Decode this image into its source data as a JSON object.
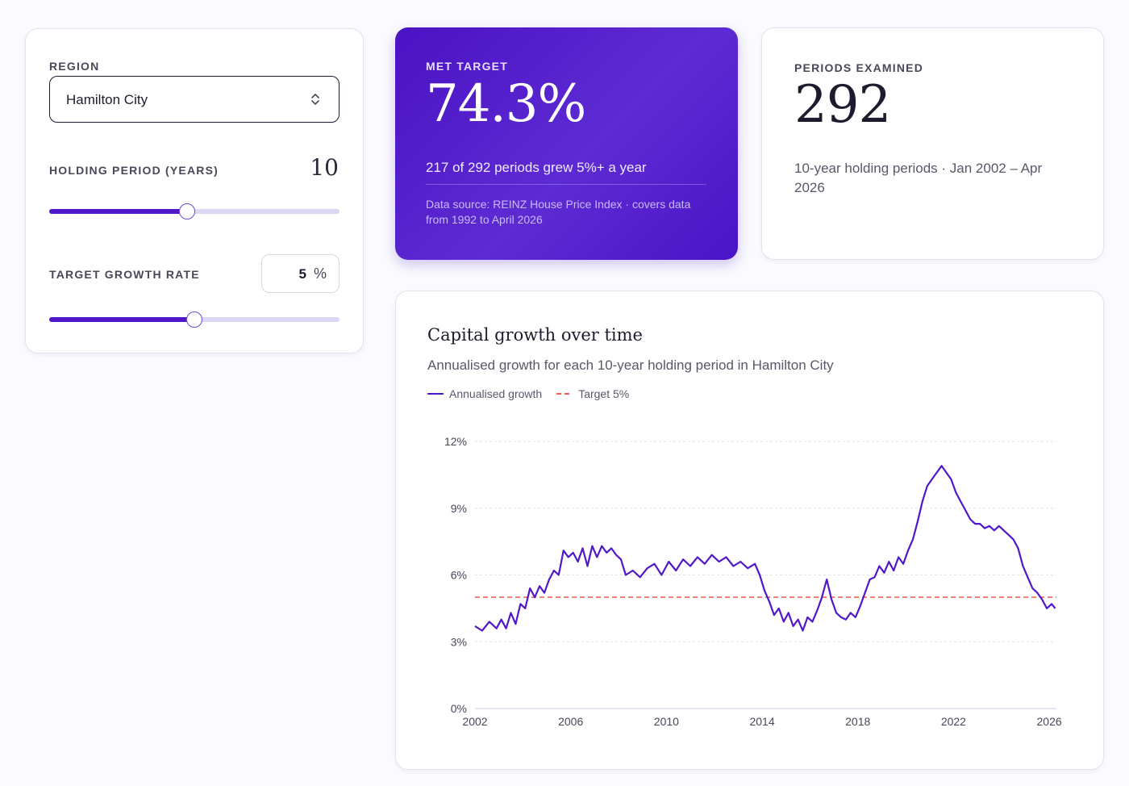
{
  "controls": {
    "region_label": "REGION",
    "region_value": "Hamilton City",
    "holding_label": "HOLDING PERIOD (YEARS)",
    "holding_value": "10",
    "holding_slider_fraction": 0.475,
    "target_label": "TARGET GROWTH RATE",
    "target_value": "5",
    "target_unit": "%",
    "target_slider_fraction": 0.5
  },
  "met_target": {
    "label": "MET TARGET",
    "value": "74.3%",
    "summary": "217 of 292 periods grew 5%+ a year",
    "source": "Data source: REINZ House Price Index · covers data from 1992 to April 2026"
  },
  "periods": {
    "label": "PERIODS EXAMINED",
    "value": "292",
    "description": "10-year holding periods · Jan 2002 – Apr 2026"
  },
  "colors": {
    "accent": "#5018c9",
    "target_line": "#f0574a"
  },
  "chart_data": {
    "type": "line",
    "title": "Capital growth over time",
    "subtitle": "Annualised growth for each 10-year holding period in Hamilton City",
    "legend": [
      "Annualised growth",
      "Target 5%"
    ],
    "legend_placement": "top-left",
    "grid": true,
    "xlim": [
      2002,
      2026.3
    ],
    "ylim": [
      0,
      12
    ],
    "x_ticks": [
      2002,
      2006,
      2010,
      2014,
      2018,
      2022,
      2026
    ],
    "y_ticks": [
      0,
      3,
      6,
      9,
      12
    ],
    "y_tick_labels": [
      "0%",
      "3%",
      "6%",
      "9%",
      "12%"
    ],
    "target": 5,
    "series": [
      {
        "name": "Annualised growth",
        "x": [
          2002.0,
          2002.3,
          2002.6,
          2002.9,
          2003.1,
          2003.3,
          2003.5,
          2003.7,
          2003.9,
          2004.1,
          2004.3,
          2004.5,
          2004.7,
          2004.9,
          2005.1,
          2005.3,
          2005.5,
          2005.7,
          2005.9,
          2006.1,
          2006.3,
          2006.5,
          2006.7,
          2006.9,
          2007.1,
          2007.3,
          2007.5,
          2007.7,
          2007.9,
          2008.1,
          2008.3,
          2008.6,
          2008.9,
          2009.2,
          2009.5,
          2009.8,
          2010.1,
          2010.4,
          2010.7,
          2011.0,
          2011.3,
          2011.6,
          2011.9,
          2012.2,
          2012.5,
          2012.8,
          2013.1,
          2013.4,
          2013.7,
          2013.9,
          2014.1,
          2014.3,
          2014.5,
          2014.7,
          2014.9,
          2015.1,
          2015.3,
          2015.5,
          2015.7,
          2015.9,
          2016.1,
          2016.3,
          2016.5,
          2016.7,
          2016.9,
          2017.1,
          2017.3,
          2017.5,
          2017.7,
          2017.9,
          2018.1,
          2018.3,
          2018.5,
          2018.7,
          2018.9,
          2019.1,
          2019.3,
          2019.5,
          2019.7,
          2019.9,
          2020.1,
          2020.3,
          2020.5,
          2020.7,
          2020.9,
          2021.1,
          2021.3,
          2021.5,
          2021.7,
          2021.9,
          2022.1,
          2022.3,
          2022.5,
          2022.7,
          2022.9,
          2023.1,
          2023.3,
          2023.5,
          2023.7,
          2023.9,
          2024.1,
          2024.3,
          2024.5,
          2024.7,
          2024.9,
          2025.1,
          2025.3,
          2025.5,
          2025.7,
          2025.9,
          2026.1,
          2026.25
        ],
        "values": [
          3.7,
          3.5,
          3.9,
          3.6,
          4.0,
          3.6,
          4.3,
          3.8,
          4.7,
          4.5,
          5.4,
          5.0,
          5.5,
          5.2,
          5.8,
          6.2,
          6.0,
          7.1,
          6.8,
          7.0,
          6.6,
          7.2,
          6.4,
          7.3,
          6.8,
          7.3,
          7.0,
          7.2,
          6.9,
          6.7,
          6.0,
          6.2,
          5.9,
          6.3,
          6.5,
          6.0,
          6.6,
          6.2,
          6.7,
          6.4,
          6.8,
          6.5,
          6.9,
          6.6,
          6.8,
          6.4,
          6.6,
          6.3,
          6.5,
          6.0,
          5.3,
          4.8,
          4.2,
          4.5,
          3.9,
          4.3,
          3.7,
          4.0,
          3.5,
          4.1,
          3.9,
          4.4,
          5.0,
          5.8,
          4.9,
          4.3,
          4.1,
          4.0,
          4.3,
          4.1,
          4.6,
          5.2,
          5.8,
          5.9,
          6.4,
          6.1,
          6.6,
          6.2,
          6.8,
          6.5,
          7.1,
          7.6,
          8.4,
          9.3,
          10.0,
          10.3,
          10.6,
          10.9,
          10.6,
          10.3,
          9.7,
          9.3,
          8.9,
          8.5,
          8.3,
          8.3,
          8.1,
          8.2,
          8.0,
          8.2,
          8.0,
          7.8,
          7.6,
          7.2,
          6.4,
          5.9,
          5.4,
          5.2,
          4.9,
          4.5,
          4.7,
          4.5
        ]
      }
    ]
  }
}
